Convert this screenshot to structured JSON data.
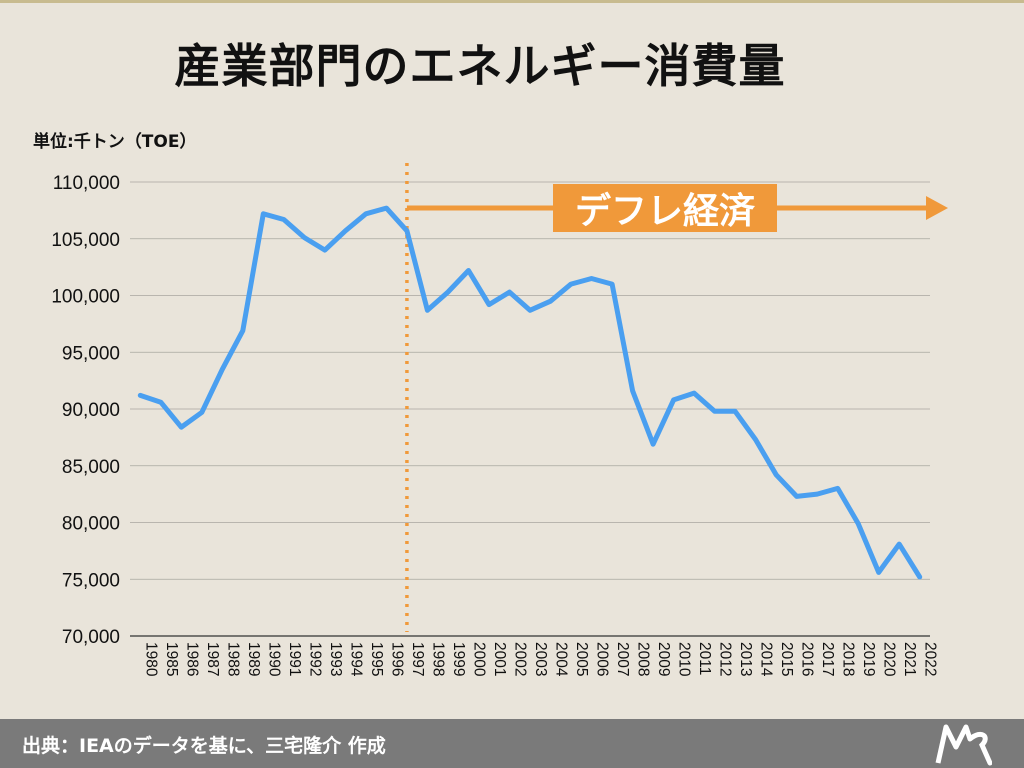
{
  "title": "産業部門のエネルギー消費量",
  "unit_label": "単位:千トン（TOE）",
  "footer": {
    "source": "出典：IEAのデータを基に、三宅隆介 作成"
  },
  "logo": {
    "icon": "mr-logo-icon"
  },
  "colors": {
    "line": "#4a9ff0",
    "accent": "#f0993a",
    "background": "#e9e4da",
    "footer": "#7a7a7a"
  },
  "chart_data": {
    "type": "line",
    "title": "産業部門のエネルギー消費量",
    "ylabel": "単位:千トン（TOE）",
    "ylim": [
      70000,
      110000
    ],
    "yticks": [
      70000,
      75000,
      80000,
      85000,
      90000,
      95000,
      100000,
      105000,
      110000
    ],
    "ytick_labels": [
      "70,000",
      "75,000",
      "80,000",
      "85,000",
      "90,000",
      "95,000",
      "100,000",
      "105,000",
      "110,000"
    ],
    "grid": true,
    "categories": [
      "1980",
      "1985",
      "1986",
      "1987",
      "1988",
      "1989",
      "1990",
      "1991",
      "1992",
      "1993",
      "1994",
      "1995",
      "1996",
      "1997",
      "1998",
      "1999",
      "2000",
      "2001",
      "2002",
      "2003",
      "2004",
      "2005",
      "2006",
      "2007",
      "2008",
      "2009",
      "2010",
      "2011",
      "2012",
      "2013",
      "2014",
      "2015",
      "2016",
      "2017",
      "2018",
      "2019",
      "2020",
      "2021",
      "2022"
    ],
    "series": [
      {
        "values": [
          91200,
          90600,
          88400,
          89700,
          93500,
          96900,
          107200,
          106700,
          105100,
          104000,
          105700,
          107200,
          107700,
          105700,
          98700,
          100300,
          102200,
          99200,
          100300,
          98700,
          99500,
          101000,
          101500,
          101000,
          91600,
          86900,
          90800,
          91400,
          89800,
          89800,
          87300,
          84200,
          82300,
          82500,
          83000,
          79900,
          75600,
          78100,
          75200
        ]
      }
    ],
    "annotations": [
      {
        "label": "デフレ経済",
        "from_category": "1997",
        "style": "dotted-vline-and-arrow"
      }
    ]
  }
}
